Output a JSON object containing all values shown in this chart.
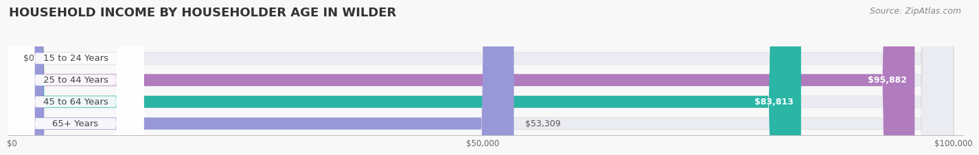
{
  "title": "HOUSEHOLD INCOME BY HOUSEHOLDER AGE IN WILDER",
  "source": "Source: ZipAtlas.com",
  "categories": [
    "15 to 24 Years",
    "25 to 44 Years",
    "45 to 64 Years",
    "65+ Years"
  ],
  "values": [
    0,
    95882,
    83813,
    53309
  ],
  "max_value": 100000,
  "bar_colors": [
    "#aac4e0",
    "#b07cbe",
    "#2ab5a5",
    "#9898d8"
  ],
  "bar_bg_colors": [
    "#ebebf2",
    "#ebebf2",
    "#ebebf2",
    "#ebebf2"
  ],
  "label_values": [
    "$0",
    "$95,882",
    "$83,813",
    "$53,309"
  ],
  "label_colors_inside": [
    false,
    true,
    true,
    false
  ],
  "xtick_labels": [
    "$0",
    "$50,000",
    "$100,000"
  ],
  "xtick_values": [
    0,
    50000,
    100000
  ],
  "background_color": "#f8f8f8",
  "title_fontsize": 13,
  "source_fontsize": 9,
  "bar_label_fontsize": 9,
  "category_fontsize": 9.5,
  "bar_height": 0.55
}
